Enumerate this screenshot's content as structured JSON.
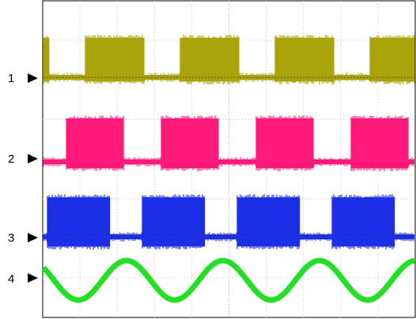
{
  "chart_data": {
    "type": "line",
    "title": "",
    "grid": true,
    "legend": "none",
    "x_divisions": 10,
    "y_divisions": 8,
    "channels": [
      {
        "label": "1",
        "color": "#a9a40a",
        "kind": "burst",
        "period_px": 120,
        "phase": 0.45
      },
      {
        "label": "2",
        "color": "#ff1a7a",
        "kind": "burst",
        "period_px": 120,
        "phase": 0.25
      },
      {
        "label": "3",
        "color": "#1c2fe6",
        "kind": "burst",
        "period_px": 120,
        "phase": 0.05
      },
      {
        "label": "4",
        "color": "#22e024",
        "kind": "sine",
        "period_px": 122,
        "phase": 0.0
      }
    ]
  }
}
